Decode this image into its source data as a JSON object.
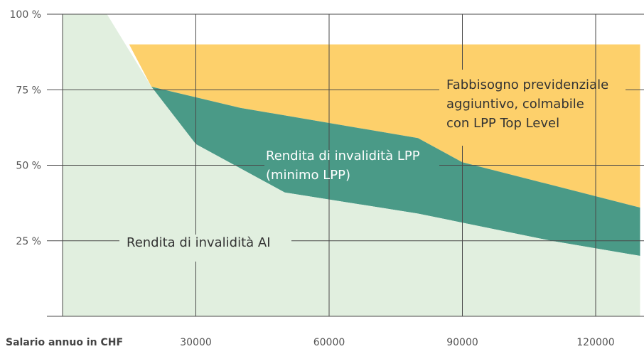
{
  "chart_data": {
    "type": "area",
    "xlabel": "Salario annuo in CHF",
    "ylabel": "",
    "xlim": [
      0,
      130000
    ],
    "ylim": [
      0,
      100
    ],
    "x_ticks": [
      30000,
      60000,
      90000,
      120000
    ],
    "y_ticks": [
      {
        "value": 100,
        "label": "100 %"
      },
      {
        "value": 75,
        "label": "75 %"
      },
      {
        "value": 50,
        "label": "50 %"
      },
      {
        "value": 25,
        "label": "25 %"
      }
    ],
    "grid": true,
    "series": [
      {
        "name": "Rendita di invalidità AI",
        "color": "#e1efdf",
        "points": [
          [
            0,
            100
          ],
          [
            10000,
            100
          ],
          [
            20000,
            76
          ],
          [
            30000,
            57
          ],
          [
            40000,
            49
          ],
          [
            50000,
            41
          ],
          [
            80000,
            34
          ],
          [
            110000,
            25
          ],
          [
            130000,
            20
          ]
        ]
      },
      {
        "name": "Rendita di invalidità LPP (minimo LPP)",
        "color": "#4a9a87",
        "points": [
          [
            20000,
            76
          ],
          [
            40000,
            69
          ],
          [
            80000,
            59
          ],
          [
            90000,
            51
          ],
          [
            130000,
            36
          ]
        ]
      },
      {
        "name": "Fabbisogno previdenziale aggiuntivo, colmabile con LPP Top Level",
        "color": "#fdd06b",
        "points": [
          [
            15000,
            90
          ],
          [
            130000,
            90
          ]
        ]
      }
    ],
    "annotations": [
      {
        "lines": [
          "Fabbisogno previdenziale",
          "aggiuntivo, colmabile",
          "con LPP Top Level"
        ],
        "color": "#333333"
      },
      {
        "lines": [
          "Rendita di invalidità LPP",
          "(minimo LPP)"
        ],
        "color": "#ffffff"
      },
      {
        "lines": [
          "Rendita di invalidità AI"
        ],
        "color": "#333333"
      }
    ]
  }
}
